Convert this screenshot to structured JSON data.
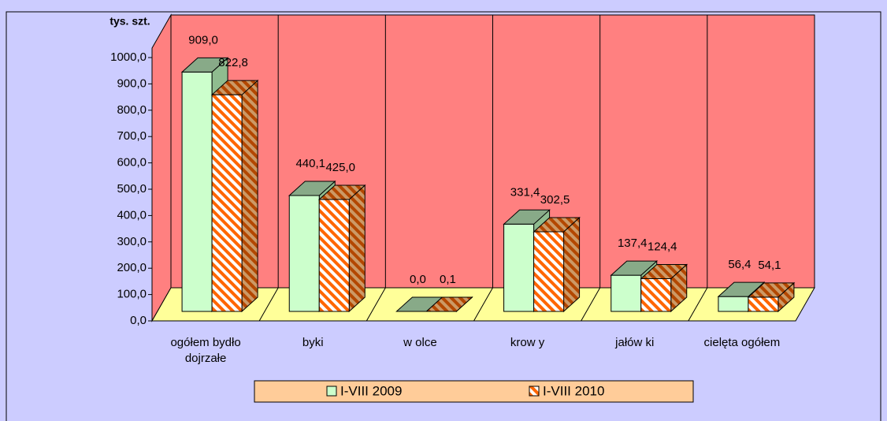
{
  "chart_data": {
    "type": "bar3d",
    "y_label": "tys. szt.",
    "categories": [
      "ogółem bydło dojrzałe",
      "byki",
      "w olce",
      "krow y",
      "jałów ki",
      "cielęta ogółem"
    ],
    "series": [
      {
        "name": "I-VIII 2009",
        "color": "#ccffcc",
        "values": [
          909.0,
          440.1,
          0.0,
          331.4,
          137.4,
          56.4
        ],
        "value_labels": [
          "909,0",
          "440,1",
          "0,0",
          "331,4",
          "137,4",
          "56,4"
        ]
      },
      {
        "name": "I-VIII 2010",
        "color": "#ff6600",
        "values": [
          822.8,
          425.0,
          0.1,
          302.5,
          124.4,
          54.1
        ],
        "value_labels": [
          "822,8",
          "425,0",
          "0,1",
          "302,5",
          "124,4",
          "54,1"
        ]
      }
    ],
    "ylim": [
      0,
      1000
    ],
    "yticks": [
      {
        "value": 0,
        "label": "0,0"
      },
      {
        "value": 100,
        "label": "100,0"
      },
      {
        "value": 200,
        "label": "200,0"
      },
      {
        "value": 300,
        "label": "300,0"
      },
      {
        "value": 400,
        "label": "400,0"
      },
      {
        "value": 500,
        "label": "500,0"
      },
      {
        "value": 600,
        "label": "600,0"
      },
      {
        "value": 700,
        "label": "700,0"
      },
      {
        "value": 800,
        "label": "800,0"
      },
      {
        "value": 900,
        "label": "900,0"
      },
      {
        "value": 1000,
        "label": "1000,0"
      }
    ],
    "legend": "bottom"
  }
}
